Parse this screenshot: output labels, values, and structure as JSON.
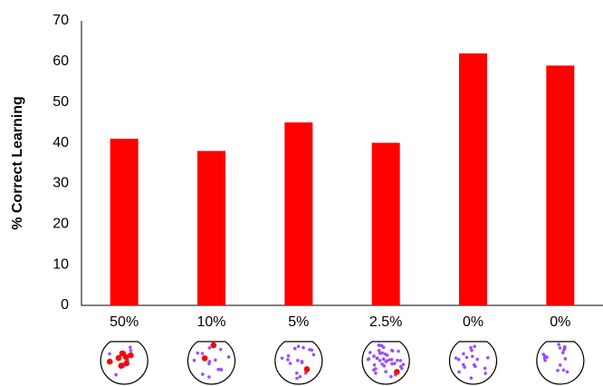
{
  "chart_data": {
    "type": "bar",
    "y_label": "% Correct Learning",
    "categories": [
      "50%",
      "10%",
      "5%",
      "2.5%",
      "0%",
      "0%"
    ],
    "values": [
      41,
      38,
      45,
      40,
      62,
      59
    ],
    "color": "#ff0000",
    "ylim": [
      0,
      70
    ],
    "yticks": [
      0,
      10,
      20,
      30,
      40,
      50,
      60,
      70
    ],
    "grid": false
  }
}
